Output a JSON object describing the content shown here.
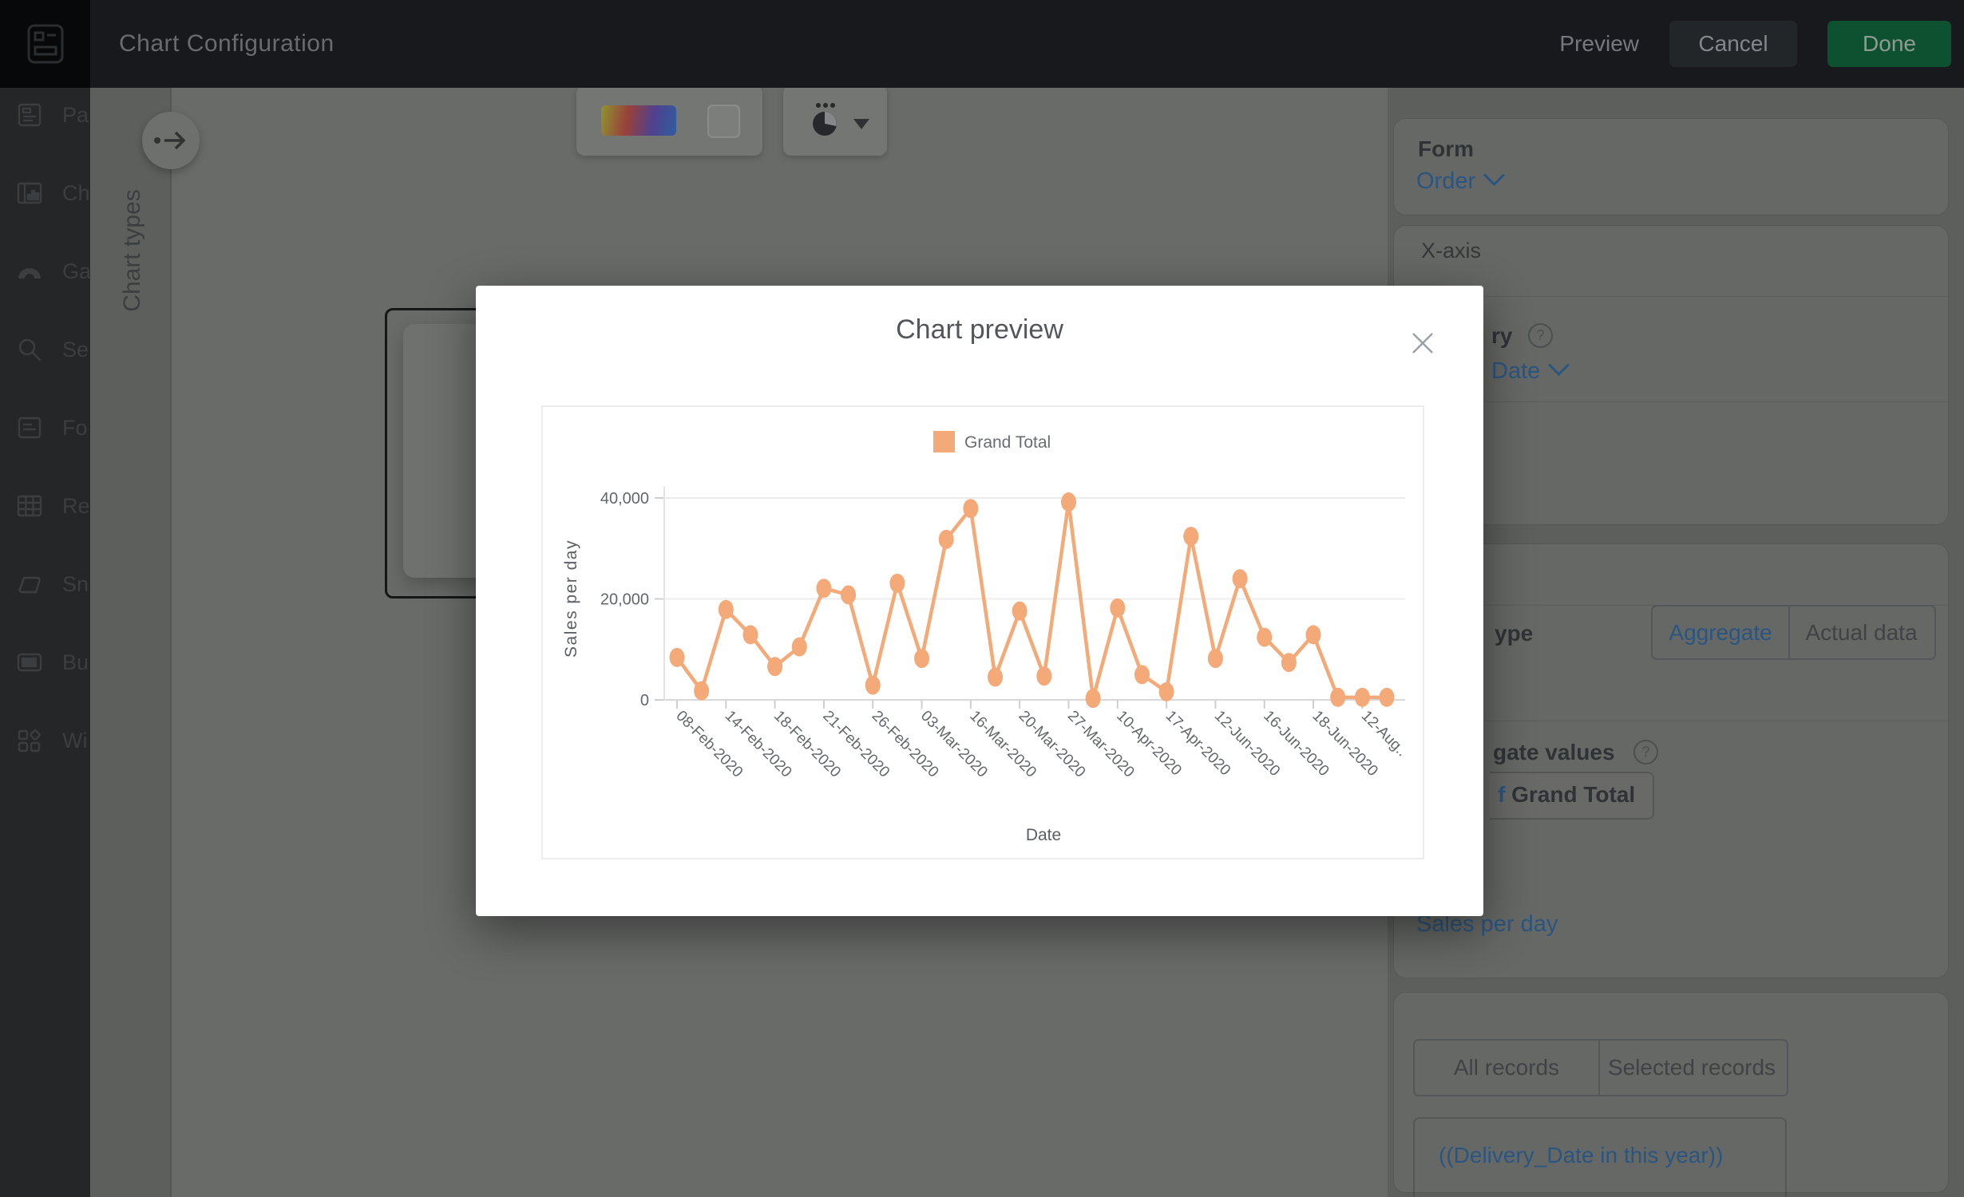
{
  "topbar": {
    "title": "Chart Configuration",
    "preview_label": "Preview",
    "cancel_label": "Cancel",
    "done_label": "Done"
  },
  "sidebar": {
    "items": [
      {
        "label": "Pa",
        "icon": "pages-icon"
      },
      {
        "label": "Ch",
        "icon": "chart-icon"
      },
      {
        "label": "Ga",
        "icon": "gauge-icon"
      },
      {
        "label": "Se",
        "icon": "search-icon"
      },
      {
        "label": "Fo",
        "icon": "form-icon"
      },
      {
        "label": "Re",
        "icon": "report-icon"
      },
      {
        "label": "Sn",
        "icon": "snippet-icon"
      },
      {
        "label": "Bu",
        "icon": "button-icon"
      },
      {
        "label": "Wi",
        "icon": "widget-icon"
      }
    ]
  },
  "chart_types_panel": {
    "label": "Chart types"
  },
  "right_panel": {
    "form_section": {
      "title": "Form",
      "value": "Order"
    },
    "xaxis_section": {
      "title": "X-axis",
      "category_fragment": "ry",
      "field_fragment": "Date"
    },
    "data_section": {
      "type_label_fragment": "ype",
      "tabs": [
        "Aggregate",
        "Actual data"
      ],
      "selected_tab": "Aggregate",
      "values_label_fragment": "gate values",
      "chip_prefix_fragment": "f",
      "chip_label": " Grand Total",
      "metric_link": "Sales per day"
    },
    "records_section": {
      "tabs": [
        "All records",
        "Selected records"
      ],
      "selected_tab": "Selected records",
      "filter": "((Delivery_Date in this year))"
    }
  },
  "modal": {
    "title": "Chart preview"
  },
  "chart_data": {
    "type": "line",
    "title": "",
    "legend": [
      "Grand Total"
    ],
    "legend_position": "top",
    "xlabel": "Date",
    "ylabel": "Sales per day",
    "ylim": [
      0,
      40000
    ],
    "yticks": [
      0,
      20000,
      40000
    ],
    "ytick_labels": [
      "0",
      "20,000",
      "40,000"
    ],
    "grid": true,
    "tick_labels": [
      "08-Feb-2020",
      "14-Feb-2020",
      "18-Feb-2020",
      "21-Feb-2020",
      "26-Feb-2020",
      "03-Mar-2020",
      "16-Mar-2020",
      "20-Mar-2020",
      "27-Mar-2020",
      "10-Apr-2020",
      "17-Apr-2020",
      "12-Jun-2020",
      "16-Jun-2020",
      "18-Jun-2020",
      "12-Aug.."
    ],
    "label_every": 2,
    "series": [
      {
        "name": "Grand Total",
        "values": [
          8400,
          1800,
          17900,
          12900,
          6600,
          10500,
          22100,
          20800,
          2900,
          23100,
          8200,
          31800,
          37900,
          4500,
          17600,
          4700,
          39200,
          300,
          18200,
          5000,
          1600,
          32400,
          8200,
          24000,
          12400,
          7400,
          12900,
          500,
          500,
          500
        ]
      }
    ]
  },
  "colors": {
    "accent_line": "#f3a978",
    "done_green": "#0e5130",
    "link_blue": "#2a5580",
    "modal_bg": "#ffffff"
  }
}
